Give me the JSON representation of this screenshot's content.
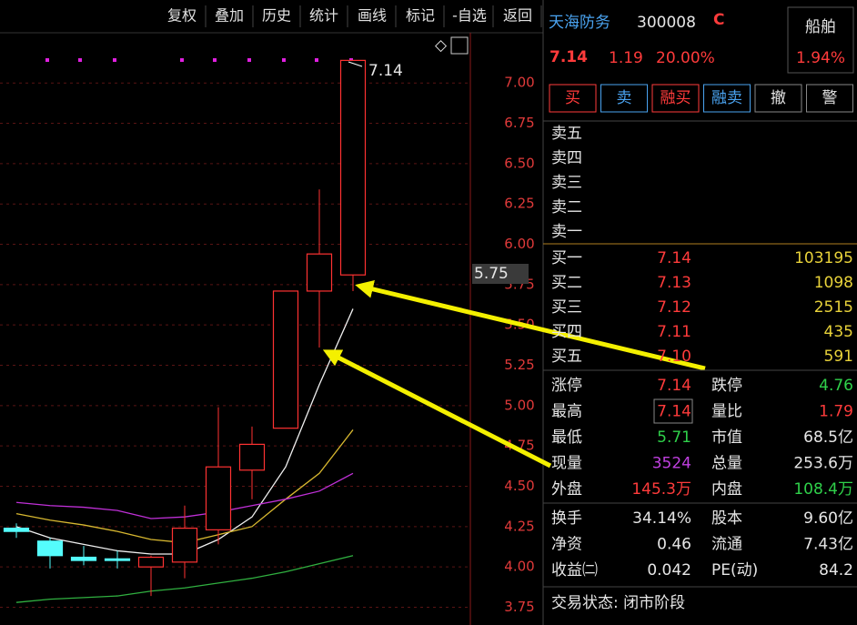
{
  "toolbar": [
    "复权",
    "叠加",
    "历史",
    "统计",
    "画线",
    "标记",
    "-自选",
    "返回"
  ],
  "stock": {
    "name": "天海防务",
    "code": "300008",
    "badge": "C",
    "price": "7.14",
    "change": "1.19",
    "percent": "20.00%",
    "sector": "船舶",
    "sector_change": "1.94%"
  },
  "buttons": [
    "买",
    "卖",
    "融买",
    "融卖",
    "撤",
    "警"
  ],
  "asks": [
    "卖五",
    "卖四",
    "卖三",
    "卖二",
    "卖一"
  ],
  "bids": [
    [
      "买一",
      "7.14",
      "103195"
    ],
    [
      "买二",
      "7.13",
      "1098"
    ],
    [
      "买三",
      "7.12",
      "2515"
    ],
    [
      "买四",
      "7.11",
      "435"
    ],
    [
      "买五",
      "7.10",
      "591"
    ]
  ],
  "stats": [
    [
      "涨停",
      "7.14",
      "跌停",
      "4.76"
    ],
    [
      "最高",
      "7.14",
      "量比",
      "1.79"
    ],
    [
      "最低",
      "5.71",
      "市值",
      "68.5亿"
    ],
    [
      "现量",
      "3524",
      "总量",
      "253.6万"
    ],
    [
      "外盘",
      "145.3万",
      "内盘",
      "108.4万"
    ]
  ],
  "fundamentals": [
    [
      "换手",
      "34.14%",
      "股本",
      "9.60亿"
    ],
    [
      "净资",
      "0.46",
      "流通",
      "7.43亿"
    ],
    [
      "收益㈡",
      "0.042",
      "PE(动)",
      "84.2"
    ]
  ],
  "status": "交易状态: 闭市阶段",
  "chart_data": {
    "type": "candlestick",
    "ylim": [
      3.64,
      7.3
    ],
    "yticks": [
      {
        "value": 7,
        "label": "7.00"
      },
      6.75,
      {
        "value": 6.5,
        "label": "6.50"
      },
      6.25,
      {
        "value": 6,
        "label": "6.00"
      },
      5.75,
      {
        "value": 5.5,
        "label": "5.50"
      },
      5.25,
      {
        "value": 5,
        "label": "5.00"
      },
      4.75,
      {
        "value": 4.5,
        "label": "4.50"
      },
      4.25,
      {
        "value": 4,
        "label": "4.00"
      },
      3.75
    ],
    "grid": true,
    "up_color": "#ff3232",
    "down_color": "#54fcfc",
    "open": [
      4.24,
      4.16,
      4.06,
      4.05,
      4.0,
      4.03,
      4.23,
      4.6,
      4.86,
      5.71,
      5.81
    ],
    "close": [
      4.22,
      4.07,
      4.04,
      4.04,
      4.06,
      4.24,
      4.62,
      4.76,
      5.71,
      5.94,
      7.14
    ],
    "high": [
      4.27,
      4.18,
      4.13,
      4.1,
      4.07,
      4.38,
      4.99,
      4.87,
      5.71,
      6.34,
      7.14
    ],
    "low": [
      4.18,
      3.99,
      4.01,
      3.99,
      3.82,
      3.93,
      4.14,
      4.42,
      4.86,
      5.36,
      5.71
    ],
    "lines": [
      {
        "color": "#f0f0f0",
        "values": [
          4.25,
          4.18,
          4.14,
          4.1,
          4.08,
          4.08,
          4.17,
          4.31,
          4.62,
          5.13,
          5.6
        ]
      },
      {
        "color": "#d8b830",
        "values": [
          4.33,
          4.29,
          4.26,
          4.22,
          4.17,
          4.15,
          4.2,
          4.25,
          4.42,
          4.58,
          4.85
        ]
      },
      {
        "color": "#c030d8",
        "values": [
          4.4,
          4.38,
          4.37,
          4.35,
          4.3,
          4.31,
          4.34,
          4.38,
          4.42,
          4.47,
          4.58
        ]
      },
      {
        "color": "#30b040",
        "values": [
          3.78,
          3.8,
          3.81,
          3.82,
          3.85,
          3.87,
          3.9,
          3.93,
          3.97,
          4.02,
          4.07
        ]
      }
    ],
    "high_label": "7.14",
    "cursor_label": "5.75"
  }
}
